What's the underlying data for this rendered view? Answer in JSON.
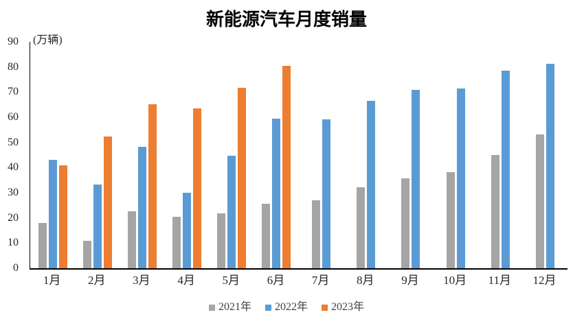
{
  "chart_data": {
    "type": "bar",
    "title": "新能源汽车月度销量",
    "unit_label": "(万辆)",
    "categories": [
      "1月",
      "2月",
      "3月",
      "4月",
      "5月",
      "6月",
      "7月",
      "8月",
      "9月",
      "10月",
      "11月",
      "12月"
    ],
    "series": [
      {
        "name": "2021年",
        "color": "#A5A5A5",
        "values": [
          17.9,
          11.0,
          22.6,
          20.6,
          21.7,
          25.6,
          27.1,
          32.1,
          35.7,
          38.3,
          45.0,
          53.1
        ]
      },
      {
        "name": "2022年",
        "color": "#5B9BD5",
        "values": [
          43.1,
          33.4,
          48.4,
          29.9,
          44.7,
          59.6,
          59.3,
          66.6,
          70.8,
          71.4,
          78.6,
          81.4
        ]
      },
      {
        "name": "2023年",
        "color": "#ED7D31",
        "values": [
          40.8,
          52.5,
          65.3,
          63.6,
          71.7,
          80.6,
          null,
          null,
          null,
          null,
          null,
          null
        ]
      }
    ],
    "ylim": [
      0,
      90
    ],
    "yticks": [
      0,
      10,
      20,
      30,
      40,
      50,
      60,
      70,
      80,
      90
    ],
    "xlabel": "",
    "ylabel": "(万辆)",
    "grid": false,
    "legend_position": "bottom",
    "axis_color": "#000000",
    "background_color": "#ffffff"
  }
}
